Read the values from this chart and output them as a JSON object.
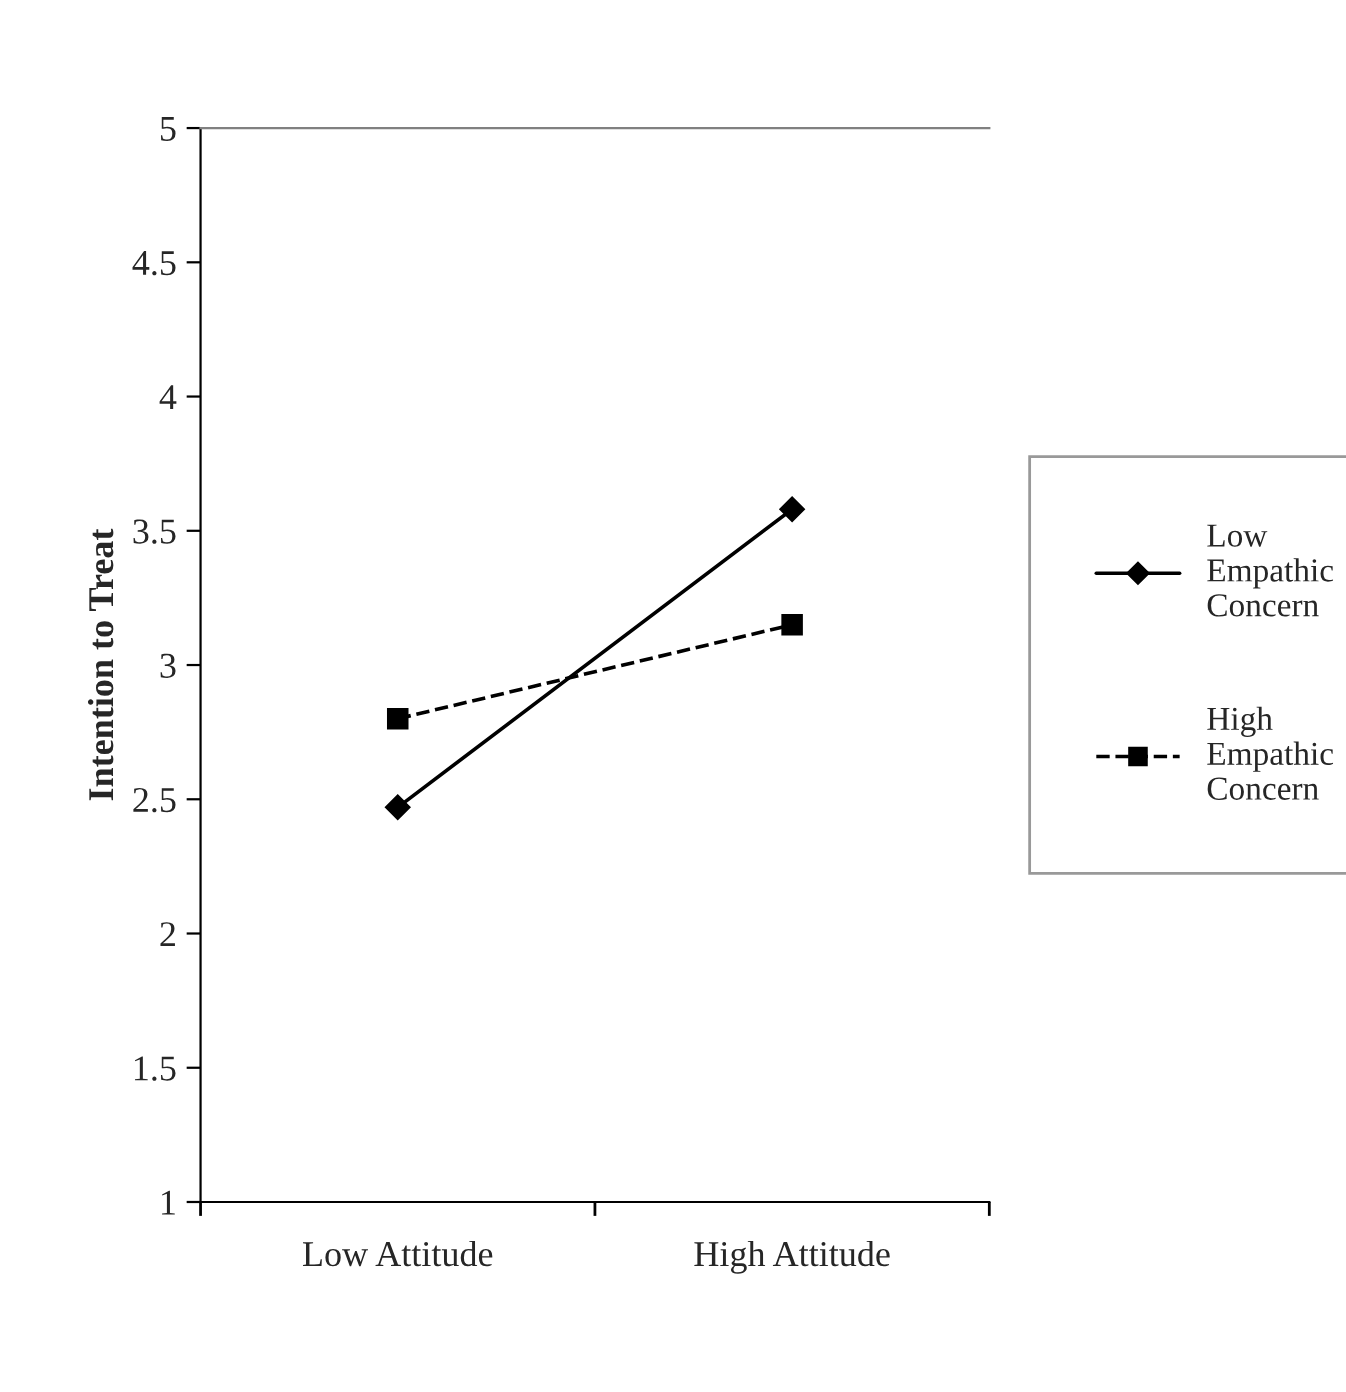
{
  "chart_data": {
    "type": "line",
    "ylabel": "Intention to Treat",
    "categories": [
      "Low Attitude",
      "High Attitude"
    ],
    "series": [
      {
        "name": "Low\nEmpathic\nConcern",
        "color": "#000000",
        "values": [
          2.47,
          3.58
        ],
        "marker": "diamond",
        "line_style": "solid"
      },
      {
        "name": "High\nEmpathic\nConcern",
        "color": "#000000",
        "values": [
          2.8,
          3.15
        ],
        "marker": "square",
        "line_style": "dashed"
      }
    ],
    "ylim": [
      1,
      5
    ],
    "yticks": [
      1,
      1.5,
      2,
      2.5,
      3,
      3.5,
      4,
      4.5,
      5
    ],
    "grid": false,
    "legend": "right"
  }
}
